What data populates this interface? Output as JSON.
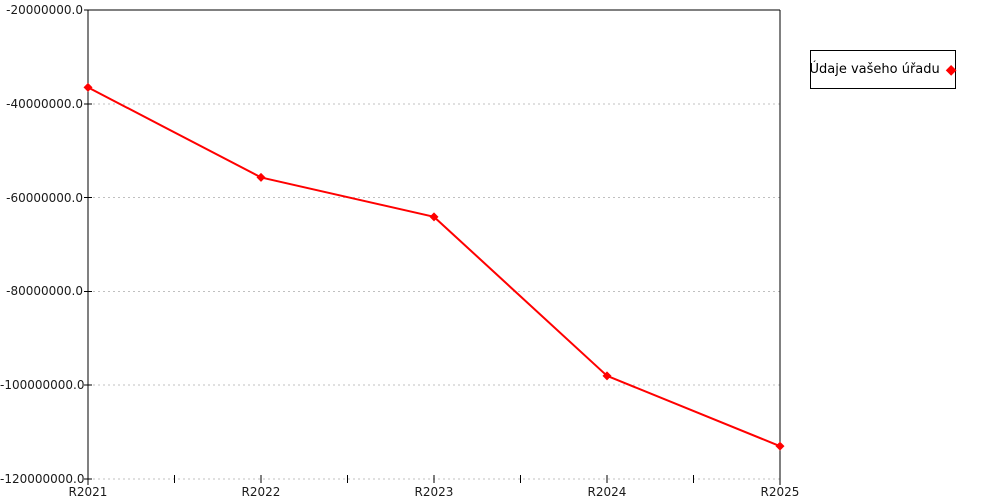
{
  "chart_data": {
    "type": "line",
    "categories": [
      "R2021",
      "R2022",
      "R2023",
      "R2024",
      "R2025"
    ],
    "series": [
      {
        "name": "Údaje vašeho úřadu",
        "color": "#ff0000",
        "marker": "diamond",
        "values": [
          -36500000,
          -55700000,
          -64100000,
          -98000000,
          -113000000
        ]
      }
    ],
    "title": "",
    "xlabel": "",
    "ylabel": "",
    "ylim": [
      -120000000,
      -20000000
    ],
    "ytick_interval": 20000000,
    "ytick_labels": [
      "-20000000.0",
      "-40000000.0",
      "-60000000.0",
      "-80000000.0",
      "-100000000.0",
      "-120000000.0"
    ],
    "grid": "horizontal-dashed",
    "legend_position": "right-outside"
  },
  "legend": {
    "label": "Údaje vašeho úřadu",
    "marker_glyph": "◆"
  },
  "colors": {
    "series": "#ff0000",
    "grid": "#c0c0c0",
    "axis": "#000000",
    "text": "#1a1a1a",
    "background": "#ffffff"
  }
}
